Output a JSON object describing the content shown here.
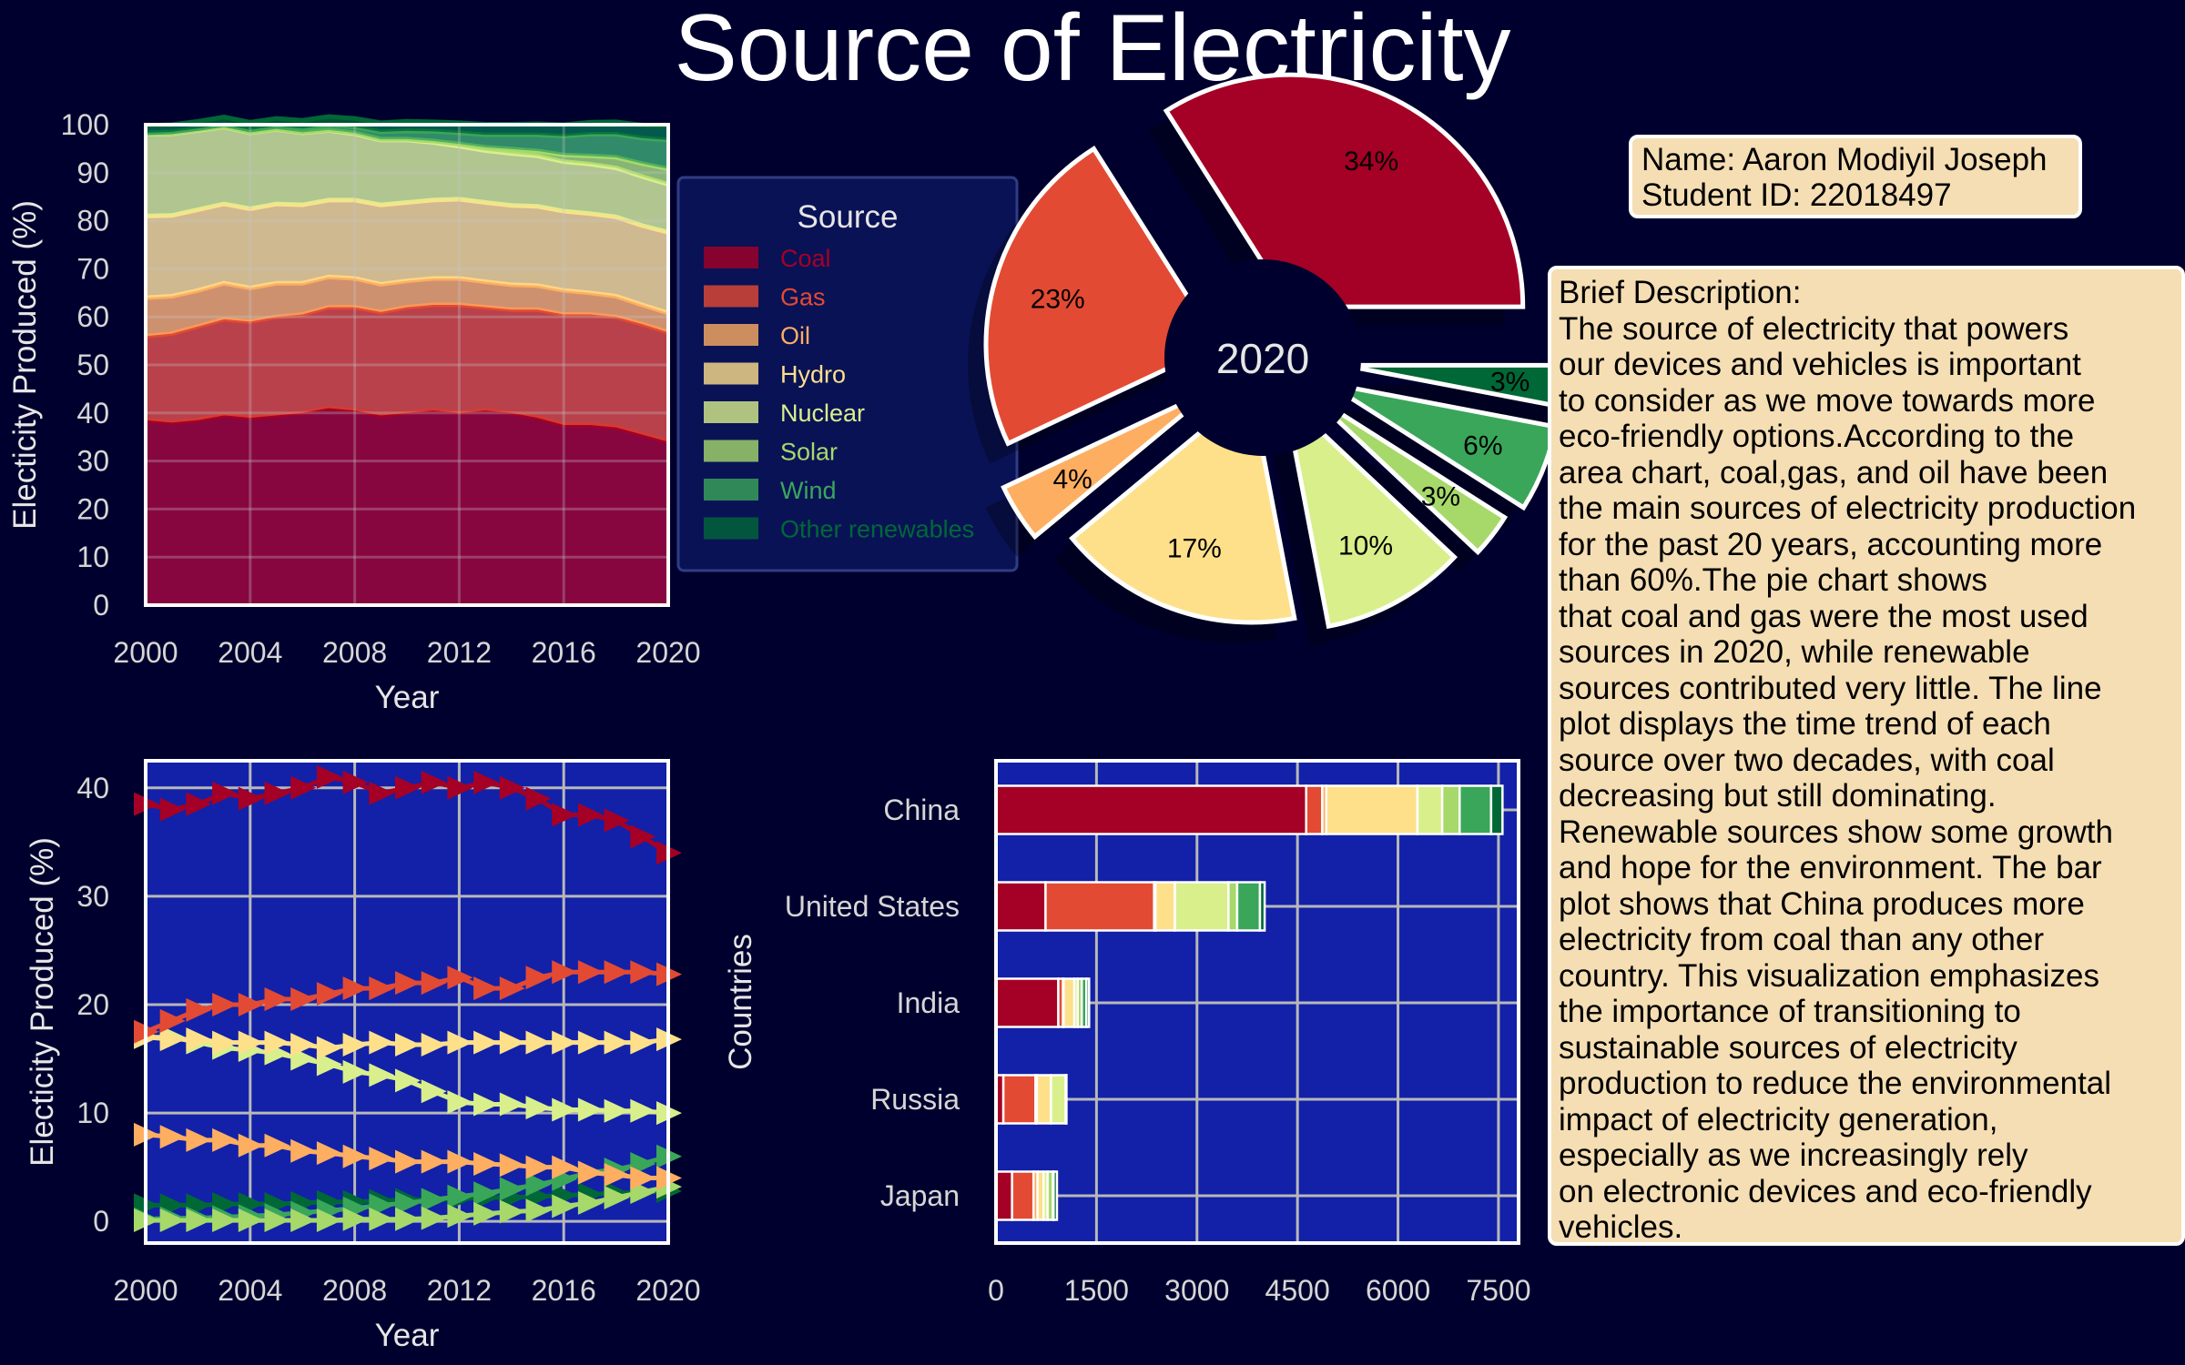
{
  "page": {
    "title": "Source of Electricity",
    "info_box": {
      "name": "Name: Aaron Modiyil Joseph",
      "student_id": "Student ID: 22018497"
    },
    "description": "Brief Description:\nThe source of electricity that powers\nour devices and vehicles is important\nto consider as we move towards more\neco-friendly options.According to the\narea chart, coal,gas, and oil have been\nthe main sources of electricity production\nfor the past 20 years, accounting more\nthan 60%.The pie chart shows\nthat coal and gas were the most used\nsources in 2020, while renewable\nsources contributed very little. The line\nplot displays the time trend of each\nsource over two decades, with coal\ndecreasing but still dominating.\nRenewable sources show some growth\nand hope for the environment. The bar\nplot shows that China produces more\nelectricity from coal than any other\ncountry. This visualization emphasizes\nthe importance of transitioning to\nsustainable sources of electricity\nproduction to reduce the environmental\nimpact of electricity generation,\nespecially as we increasingly rely\non electronic devices and eco-friendly\nvehicles."
  },
  "colors": {
    "background": "#00002e",
    "plot_area": "#1221a8",
    "sources": {
      "Coal": "#a50026",
      "Gas": "#e34a33",
      "Oil": "#fdae61",
      "Hydro": "#fee08b",
      "Nuclear": "#d9ef8b",
      "Solar": "#a6d96a",
      "Wind": "#3aa65a",
      "Other renewables": "#006837"
    }
  },
  "chart_data": [
    {
      "id": "area",
      "type": "area",
      "stacked": true,
      "xlabel": "Year",
      "ylabel": "Electicity Produced (%)",
      "xlim": [
        2000,
        2020
      ],
      "ylim": [
        0,
        100
      ],
      "xticks": [
        2000,
        2004,
        2008,
        2012,
        2016,
        2020
      ],
      "yticks": [
        0,
        10,
        20,
        30,
        40,
        50,
        60,
        70,
        80,
        90,
        100
      ],
      "grid": true,
      "legend": {
        "title": "Source",
        "placement": "right, outside plot"
      },
      "x": [
        2000,
        2001,
        2002,
        2003,
        2004,
        2005,
        2006,
        2007,
        2008,
        2009,
        2010,
        2011,
        2012,
        2013,
        2014,
        2015,
        2016,
        2017,
        2018,
        2019,
        2020
      ],
      "series": [
        {
          "name": "Coal",
          "values": [
            38.5,
            38.0,
            38.5,
            39.5,
            39.0,
            39.5,
            40.0,
            41.0,
            40.5,
            39.5,
            40.0,
            40.5,
            40.0,
            40.5,
            40.0,
            39.0,
            37.5,
            37.5,
            37.0,
            35.5,
            34.0
          ]
        },
        {
          "name": "Gas",
          "values": [
            17.5,
            18.5,
            19.5,
            20.0,
            20.0,
            20.5,
            20.5,
            21.0,
            21.5,
            21.5,
            22.0,
            22.0,
            22.5,
            21.5,
            21.5,
            22.5,
            23.0,
            23.0,
            23.0,
            23.0,
            22.8
          ]
        },
        {
          "name": "Oil",
          "values": [
            8.0,
            7.8,
            7.5,
            7.5,
            7.0,
            7.0,
            6.5,
            6.3,
            6.0,
            5.8,
            5.5,
            5.5,
            5.5,
            5.3,
            5.2,
            5.0,
            5.0,
            4.5,
            4.3,
            4.0,
            4.0
          ]
        },
        {
          "name": "Hydro",
          "values": [
            17.0,
            16.8,
            16.8,
            16.5,
            16.5,
            16.5,
            16.3,
            16.0,
            16.3,
            16.5,
            16.3,
            16.3,
            16.5,
            16.5,
            16.5,
            16.5,
            16.5,
            16.5,
            16.5,
            16.5,
            16.8
          ]
        },
        {
          "name": "Nuclear",
          "values": [
            17.0,
            17.0,
            16.5,
            16.0,
            15.8,
            15.5,
            15.0,
            14.5,
            13.8,
            13.5,
            13.0,
            12.0,
            11.0,
            10.8,
            10.8,
            10.5,
            10.3,
            10.3,
            10.2,
            10.2,
            10.0
          ]
        },
        {
          "name": "Solar",
          "values": [
            0.1,
            0.1,
            0.1,
            0.1,
            0.1,
            0.1,
            0.1,
            0.1,
            0.2,
            0.2,
            0.2,
            0.3,
            0.5,
            0.7,
            0.9,
            1.0,
            1.4,
            1.7,
            2.2,
            2.7,
            3.2
          ]
        },
        {
          "name": "Wind",
          "values": [
            0.2,
            0.3,
            0.3,
            0.4,
            0.5,
            0.6,
            0.8,
            1.0,
            1.2,
            1.5,
            1.7,
            2.0,
            2.3,
            2.6,
            3.0,
            3.4,
            3.9,
            4.5,
            4.8,
            5.3,
            6.0
          ]
        },
        {
          "name": "Other renewables",
          "values": [
            1.5,
            1.5,
            1.5,
            1.6,
            1.6,
            1.6,
            1.7,
            1.8,
            1.8,
            1.9,
            2.0,
            2.0,
            2.1,
            2.2,
            2.2,
            2.3,
            2.4,
            2.5,
            2.6,
            2.7,
            2.8
          ]
        }
      ]
    },
    {
      "id": "pie",
      "type": "pie",
      "center_label": "2020",
      "categories": [
        "Coal",
        "Gas",
        "Oil",
        "Hydro",
        "Nuclear",
        "Solar",
        "Wind",
        "Other renewables"
      ],
      "values": [
        34,
        23,
        4,
        17,
        10,
        3,
        6,
        3
      ],
      "labels": [
        "34%",
        "23%",
        "4%",
        "17%",
        "10%",
        "3%",
        "6%",
        "3%"
      ]
    },
    {
      "id": "line",
      "type": "line",
      "marker": "right-pointing triangle",
      "xlabel": "Year",
      "ylabel": "Electicity Produced (%)",
      "xlim": [
        2000,
        2020
      ],
      "ylim": [
        -2,
        42.5
      ],
      "xticks": [
        2000,
        2004,
        2008,
        2012,
        2016,
        2020
      ],
      "yticks": [
        0,
        10,
        20,
        30,
        40
      ],
      "grid": true,
      "series_ref": "area"
    },
    {
      "id": "bar",
      "type": "bar",
      "orientation": "horizontal",
      "stacked": true,
      "ylabel": "Countries",
      "xlim": [
        0,
        7800
      ],
      "xticks": [
        0,
        1500,
        3000,
        4500,
        6000,
        7500
      ],
      "grid": true,
      "categories": [
        "China",
        "United States",
        "India",
        "Russia",
        "Japan"
      ],
      "series": [
        {
          "name": "Coal",
          "values": [
            4630,
            740,
            930,
            110,
            240
          ]
        },
        {
          "name": "Gas",
          "values": [
            240,
            1620,
            70,
            480,
            320
          ]
        },
        {
          "name": "Oil",
          "values": [
            60,
            20,
            10,
            20,
            60
          ]
        },
        {
          "name": "Hydro",
          "values": [
            1360,
            290,
            160,
            210,
            90
          ]
        },
        {
          "name": "Nuclear",
          "values": [
            370,
            800,
            50,
            220,
            60
          ]
        },
        {
          "name": "Solar",
          "values": [
            260,
            130,
            60,
            10,
            80
          ]
        },
        {
          "name": "Wind",
          "values": [
            470,
            340,
            70,
            2,
            10
          ]
        },
        {
          "name": "Other renewables",
          "values": [
            170,
            70,
            40,
            0,
            50
          ]
        }
      ]
    }
  ]
}
